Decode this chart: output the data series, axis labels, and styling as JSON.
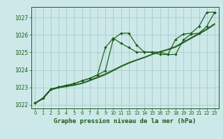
{
  "background_color": "#cce8e8",
  "grid_color": "#aacccc",
  "line_color": "#1a5c1a",
  "title": "Graphe pression niveau de la mer (hPa)",
  "xlim": [
    -0.5,
    23.5
  ],
  "ylim": [
    1021.8,
    1027.6
  ],
  "yticks": [
    1022,
    1023,
    1024,
    1025,
    1026,
    1027
  ],
  "xticks": [
    0,
    1,
    2,
    3,
    4,
    5,
    6,
    7,
    8,
    9,
    10,
    11,
    12,
    13,
    14,
    15,
    16,
    17,
    18,
    19,
    20,
    21,
    22,
    23
  ],
  "series_smooth1": {
    "x": [
      0,
      1,
      2,
      3,
      4,
      5,
      6,
      7,
      8,
      9,
      10,
      11,
      12,
      13,
      14,
      15,
      16,
      17,
      18,
      19,
      20,
      21,
      22,
      23
    ],
    "y": [
      1022.1,
      1022.35,
      1022.85,
      1022.98,
      1023.05,
      1023.12,
      1023.22,
      1023.38,
      1023.55,
      1023.72,
      1023.95,
      1024.18,
      1024.38,
      1024.55,
      1024.7,
      1024.88,
      1025.02,
      1025.15,
      1025.3,
      1025.55,
      1025.8,
      1026.05,
      1026.3,
      1026.6
    ]
  },
  "series_smooth2": {
    "x": [
      0,
      1,
      2,
      3,
      4,
      5,
      6,
      7,
      8,
      9,
      10,
      11,
      12,
      13,
      14,
      15,
      16,
      17,
      18,
      19,
      20,
      21,
      22,
      23
    ],
    "y": [
      1022.1,
      1022.35,
      1022.88,
      1023.0,
      1023.08,
      1023.15,
      1023.25,
      1023.42,
      1023.6,
      1023.78,
      1024.0,
      1024.22,
      1024.42,
      1024.58,
      1024.73,
      1024.9,
      1025.05,
      1025.18,
      1025.35,
      1025.6,
      1025.85,
      1026.1,
      1026.35,
      1026.65
    ]
  },
  "series_spiky1": {
    "x": [
      0,
      1,
      2,
      3,
      4,
      5,
      6,
      7,
      8,
      9,
      10,
      11,
      12,
      13,
      14,
      15,
      16,
      17,
      18,
      19,
      20,
      21,
      22,
      23
    ],
    "y": [
      1022.1,
      1022.4,
      1022.9,
      1023.02,
      1023.12,
      1023.22,
      1023.38,
      1023.52,
      1023.72,
      1023.95,
      1025.75,
      1026.1,
      1026.1,
      1025.42,
      1025.02,
      1025.02,
      1025.02,
      1024.88,
      1024.88,
      1025.72,
      1026.05,
      1026.1,
      1026.5,
      1027.3
    ]
  },
  "series_spiky2": {
    "x": [
      0,
      1,
      2,
      3,
      4,
      5,
      6,
      7,
      8,
      9,
      10,
      11,
      12,
      13,
      14,
      15,
      16,
      17,
      18,
      19,
      20,
      21,
      22,
      23
    ],
    "y": [
      1022.1,
      1022.4,
      1022.9,
      1023.02,
      1023.12,
      1023.22,
      1023.38,
      1023.52,
      1023.72,
      1025.28,
      1025.82,
      1025.52,
      1025.28,
      1025.02,
      1025.02,
      1025.02,
      1024.88,
      1024.88,
      1025.75,
      1026.05,
      1026.1,
      1026.5,
      1027.3,
      1027.3
    ]
  }
}
